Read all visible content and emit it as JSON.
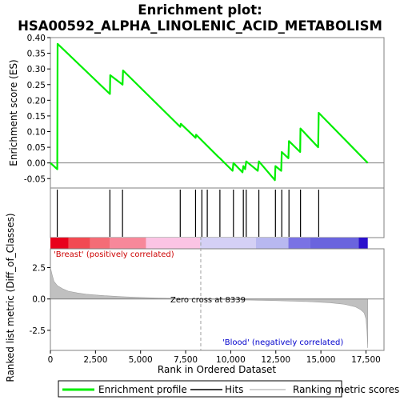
{
  "chart_data": {
    "type": "line",
    "title": "Enrichment plot: HSA00592_ALPHA_LINOLENIC_ACID_METABOLISM",
    "es_panel": {
      "ylabel": "Enrichment score (ES)",
      "ylim": [
        -0.08,
        0.4
      ],
      "yticks": [
        "0.40",
        "0.35",
        "0.30",
        "0.25",
        "0.20",
        "0.15",
        "0.10",
        "0.05",
        "0.00",
        "-0.05"
      ],
      "ytick_values": [
        0.4,
        0.35,
        0.3,
        0.25,
        0.2,
        0.15,
        0.1,
        0.05,
        0.0,
        -0.05
      ],
      "series": [
        {
          "name": "Enrichment profile",
          "color": "#00ee00",
          "points": [
            [
              0,
              0.0
            ],
            [
              380,
              -0.02
            ],
            [
              400,
              0.38
            ],
            [
              3300,
              0.22
            ],
            [
              3320,
              0.28
            ],
            [
              4000,
              0.25
            ],
            [
              4030,
              0.295
            ],
            [
              7200,
              0.115
            ],
            [
              7230,
              0.125
            ],
            [
              8050,
              0.08
            ],
            [
              8080,
              0.09
            ],
            [
              9300,
              0.02
            ],
            [
              9400,
              0.015
            ],
            [
              10100,
              -0.025
            ],
            [
              10150,
              0.0
            ],
            [
              10650,
              -0.03
            ],
            [
              10700,
              -0.01
            ],
            [
              10800,
              -0.02
            ],
            [
              10860,
              0.005
            ],
            [
              11500,
              -0.025
            ],
            [
              11560,
              0.005
            ],
            [
              12450,
              -0.055
            ],
            [
              12480,
              -0.01
            ],
            [
              12800,
              -0.025
            ],
            [
              12830,
              0.035
            ],
            [
              13200,
              0.015
            ],
            [
              13230,
              0.07
            ],
            [
              13850,
              0.035
            ],
            [
              13870,
              0.11
            ],
            [
              14850,
              0.05
            ],
            [
              14880,
              0.16
            ],
            [
              17600,
              0.0
            ]
          ]
        }
      ]
    },
    "hits": {
      "name": "Hits",
      "positions": [
        380,
        3300,
        4000,
        7200,
        8050,
        8400,
        8700,
        9400,
        10150,
        10700,
        10860,
        11560,
        12480,
        12830,
        13230,
        13870,
        14880
      ]
    },
    "heatmap": {
      "label_left": "'Breast' (positively correlated)",
      "label_right": "'Blood' (negatively correlated)",
      "segments": [
        {
          "from": 0,
          "to": 1000,
          "color": "#e8001c"
        },
        {
          "from": 1000,
          "to": 2200,
          "color": "#f24a52"
        },
        {
          "from": 2200,
          "to": 3300,
          "color": "#f46c76"
        },
        {
          "from": 3300,
          "to": 5300,
          "color": "#f7889a"
        },
        {
          "from": 5300,
          "to": 8300,
          "color": "#fbc4e4"
        },
        {
          "from": 8300,
          "to": 11400,
          "color": "#d4d0f5"
        },
        {
          "from": 11400,
          "to": 13200,
          "color": "#b8b8f0"
        },
        {
          "from": 13200,
          "to": 14400,
          "color": "#7a72e4"
        },
        {
          "from": 14400,
          "to": 17100,
          "color": "#6a64de"
        },
        {
          "from": 17100,
          "to": 17600,
          "color": "#2a10cc"
        }
      ]
    },
    "metric_panel": {
      "ylabel": "Ranked list metric (Diff_of_Classes)",
      "ylim": [
        -4.1,
        4.0
      ],
      "yticks": [
        "2.5",
        "0.0",
        "-2.5"
      ],
      "ytick_values": [
        2.5,
        0.0,
        -2.5
      ],
      "zero_cross_label": "Zero cross at 8339",
      "zero_cross": 8339,
      "series": [
        {
          "name": "Ranking metric scores",
          "color": "#c0c0c0",
          "points": [
            [
              0,
              2.5
            ],
            [
              100,
              1.9
            ],
            [
              200,
              1.4
            ],
            [
              400,
              1.05
            ],
            [
              700,
              0.8
            ],
            [
              1000,
              0.62
            ],
            [
              1500,
              0.48
            ],
            [
              2000,
              0.38
            ],
            [
              3000,
              0.26
            ],
            [
              4000,
              0.18
            ],
            [
              5000,
              0.12
            ],
            [
              6000,
              0.07
            ],
            [
              7000,
              0.04
            ],
            [
              8339,
              0.0
            ],
            [
              9500,
              -0.04
            ],
            [
              10500,
              -0.07
            ],
            [
              11500,
              -0.1
            ],
            [
              12500,
              -0.13
            ],
            [
              13500,
              -0.17
            ],
            [
              14500,
              -0.22
            ],
            [
              15500,
              -0.3
            ],
            [
              16300,
              -0.42
            ],
            [
              16900,
              -0.62
            ],
            [
              17200,
              -0.85
            ],
            [
              17400,
              -1.1
            ],
            [
              17500,
              -1.6
            ],
            [
              17560,
              -2.6
            ],
            [
              17600,
              -3.9
            ]
          ]
        }
      ]
    },
    "xaxis": {
      "xlabel": "Rank in Ordered Dataset",
      "xlim": [
        0,
        18500
      ],
      "xticks": [
        "0",
        "2,500",
        "5,000",
        "7,500",
        "10,000",
        "12,500",
        "15,000",
        "17,500"
      ],
      "xtick_values": [
        0,
        2500,
        5000,
        7500,
        10000,
        12500,
        15000,
        17500
      ]
    },
    "legend": {
      "placement": "bottom",
      "items": [
        {
          "label": "Enrichment profile",
          "color": "#00ee00"
        },
        {
          "label": "Hits",
          "color": "#000000"
        },
        {
          "label": "Ranking metric scores",
          "color": "#c0c0c0"
        }
      ]
    }
  }
}
